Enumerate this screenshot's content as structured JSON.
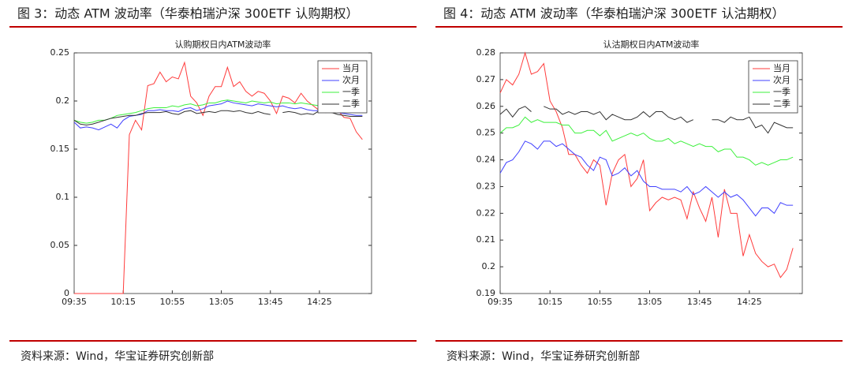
{
  "chart_data": [
    {
      "type": "line",
      "title": "图 3：动态 ATM 波动率（华泰柏瑞沪深 300ETF 认购期权）",
      "subtitle": "认购期权日内ATM波动率",
      "source": "资料来源：Wind，华宝证券研究创新部",
      "categories": [
        "09:35",
        null,
        null,
        null,
        null,
        null,
        null,
        null,
        "10:15",
        null,
        null,
        null,
        null,
        null,
        null,
        null,
        "10:55",
        null,
        null,
        null,
        null,
        null,
        null,
        null,
        "13:05",
        null,
        null,
        null,
        null,
        null,
        null,
        null,
        "13:45",
        null,
        null,
        null,
        null,
        null,
        null,
        null,
        "14:25",
        null,
        null,
        null,
        null,
        null,
        null,
        null
      ],
      "ylim": [
        0,
        0.25
      ],
      "yticks": [
        0,
        0.05,
        0.1,
        0.15,
        0.2,
        0.25
      ],
      "grid": false,
      "legend": "upper right",
      "series": [
        {
          "name": "当月",
          "color": "#ff3b3b",
          "values": [
            0,
            0,
            0,
            0,
            0,
            0,
            0,
            0,
            0,
            0.165,
            0.18,
            0.17,
            0.216,
            0.218,
            0.23,
            0.22,
            0.225,
            0.223,
            0.24,
            0.205,
            0.198,
            0.185,
            0.205,
            0.215,
            0.215,
            0.235,
            0.215,
            0.22,
            0.21,
            0.205,
            0.21,
            0.208,
            0.2,
            0.187,
            0.205,
            0.203,
            0.198,
            0.208,
            0.2,
            0.195,
            0.19,
            0.188,
            0.19,
            0.19,
            0.183,
            0.182,
            0.168,
            0.16
          ]
        },
        {
          "name": "次月",
          "color": "#4040ff",
          "values": [
            0.178,
            0.172,
            0.173,
            0.172,
            0.17,
            0.173,
            0.176,
            0.172,
            0.18,
            0.184,
            0.185,
            0.186,
            0.19,
            0.19,
            0.191,
            0.19,
            0.19,
            0.189,
            0.192,
            0.193,
            0.19,
            0.192,
            0.195,
            0.196,
            0.197,
            0.2,
            0.198,
            0.197,
            0.196,
            0.195,
            0.197,
            0.196,
            0.195,
            0.194,
            0.195,
            0.193,
            0.192,
            0.193,
            0.191,
            0.19,
            0.19,
            0.188,
            0.189,
            0.188,
            0.187,
            0.186,
            0.185,
            0.185
          ]
        },
        {
          "name": "一季",
          "color": "#3cf03c",
          "values": [
            0.18,
            0.178,
            0.177,
            0.178,
            0.18,
            0.18,
            0.182,
            0.185,
            0.186,
            0.187,
            0.188,
            0.19,
            0.192,
            0.193,
            0.193,
            0.193,
            0.195,
            0.194,
            0.196,
            0.197,
            0.195,
            0.196,
            0.198,
            0.198,
            0.2,
            0.201,
            0.2,
            0.199,
            0.198,
            0.2,
            0.199,
            0.198,
            0.199,
            0.197,
            0.198,
            0.198,
            0.197,
            0.198,
            0.197,
            0.196,
            0.195,
            0.193,
            0.192,
            0.19,
            0.19,
            0.19,
            0.19,
            0.19
          ]
        },
        {
          "name": "二季",
          "color": "#333333",
          "values": [
            0.18,
            0.176,
            0.175,
            0.176,
            0.178,
            0.18,
            0.182,
            0.183,
            0.184,
            0.185,
            0.185,
            0.187,
            0.188,
            0.188,
            0.188,
            0.189,
            0.187,
            0.186,
            0.189,
            0.19,
            0.187,
            0.188,
            0.189,
            0.188,
            0.19,
            0.19,
            0.189,
            0.19,
            0.188,
            0.187,
            0.189,
            0.187,
            0.186,
            null,
            0.188,
            0.189,
            0.188,
            0.186,
            0.187,
            0.186,
            0.19,
            0.189,
            0.188,
            0.186,
            0.185,
            0.184,
            0.184,
            0.184
          ]
        }
      ]
    },
    {
      "type": "line",
      "title": "图 4：动态 ATM 波动率（华泰柏瑞沪深 300ETF 认沽期权）",
      "subtitle": "认沽期权日内ATM波动率",
      "source": "资料来源：Wind，华宝证券研究创新部",
      "categories": [
        "09:35",
        null,
        null,
        null,
        null,
        null,
        null,
        null,
        "10:15",
        null,
        null,
        null,
        null,
        null,
        null,
        null,
        "10:55",
        null,
        null,
        null,
        null,
        null,
        null,
        null,
        "13:05",
        null,
        null,
        null,
        null,
        null,
        null,
        null,
        "13:45",
        null,
        null,
        null,
        null,
        null,
        null,
        null,
        "14:25",
        null,
        null,
        null,
        null,
        null,
        null,
        null
      ],
      "ylim": [
        0.19,
        0.28
      ],
      "yticks": [
        0.19,
        0.2,
        0.21,
        0.22,
        0.23,
        0.24,
        0.25,
        0.26,
        0.27,
        0.28
      ],
      "grid": false,
      "legend": "upper right",
      "series": [
        {
          "name": "当月",
          "color": "#ff3b3b",
          "values": [
            0.265,
            0.27,
            0.268,
            0.272,
            0.28,
            0.272,
            0.273,
            0.276,
            0.262,
            0.258,
            0.252,
            0.242,
            0.242,
            0.238,
            0.235,
            0.24,
            0.238,
            0.223,
            0.235,
            0.24,
            0.242,
            0.23,
            0.233,
            0.24,
            0.221,
            0.224,
            0.226,
            0.225,
            0.226,
            0.225,
            0.218,
            0.228,
            0.222,
            0.217,
            0.226,
            0.211,
            0.229,
            0.22,
            0.22,
            0.204,
            0.212,
            0.205,
            0.202,
            0.2,
            0.201,
            0.196,
            0.199,
            0.207
          ]
        },
        {
          "name": "次月",
          "color": "#4040ff",
          "values": [
            0.235,
            0.239,
            0.24,
            0.243,
            0.247,
            0.246,
            0.244,
            0.247,
            0.247,
            0.245,
            0.246,
            0.244,
            0.242,
            0.241,
            0.238,
            0.236,
            0.241,
            0.24,
            0.234,
            0.235,
            0.237,
            0.234,
            0.236,
            0.232,
            0.23,
            0.23,
            0.229,
            0.229,
            0.229,
            0.228,
            0.23,
            0.227,
            0.228,
            0.23,
            0.228,
            0.226,
            0.228,
            0.226,
            0.227,
            0.225,
            0.222,
            0.219,
            0.222,
            0.222,
            0.22,
            0.224,
            0.223,
            0.223
          ]
        },
        {
          "name": "一季",
          "color": "#3cf03c",
          "values": [
            0.25,
            0.252,
            0.252,
            0.253,
            0.256,
            0.254,
            0.255,
            0.254,
            0.254,
            0.254,
            0.253,
            0.253,
            0.25,
            0.25,
            0.251,
            0.251,
            0.249,
            0.251,
            0.247,
            0.248,
            0.249,
            0.25,
            0.249,
            0.25,
            0.248,
            0.247,
            0.247,
            0.248,
            0.246,
            0.247,
            0.246,
            0.245,
            0.246,
            0.245,
            0.245,
            0.243,
            0.244,
            0.244,
            0.241,
            0.241,
            0.24,
            0.238,
            0.239,
            0.238,
            0.239,
            0.24,
            0.24,
            0.241
          ]
        },
        {
          "name": "二季",
          "color": "#333333",
          "values": [
            0.257,
            0.259,
            0.256,
            0.259,
            0.26,
            0.258,
            null,
            0.26,
            0.259,
            0.259,
            0.257,
            0.258,
            0.257,
            0.258,
            0.258,
            0.257,
            0.258,
            0.255,
            0.257,
            0.256,
            0.255,
            0.255,
            0.256,
            0.258,
            0.256,
            0.258,
            0.258,
            0.256,
            0.255,
            0.256,
            0.254,
            0.255,
            null,
            null,
            0.255,
            0.255,
            0.254,
            0.256,
            0.255,
            0.255,
            0.256,
            0.252,
            0.253,
            0.25,
            0.254,
            0.253,
            0.252,
            0.252
          ]
        }
      ]
    }
  ]
}
